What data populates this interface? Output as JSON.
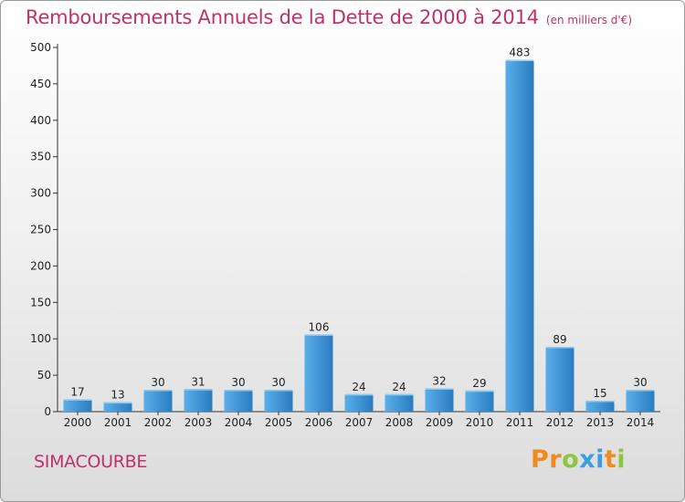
{
  "title": "Remboursements Annuels de la Dette de 2000 à 2014",
  "unit_note": "(en milliers d'€)",
  "commune": "SIMACOURBE",
  "logo": {
    "letters": [
      "P",
      "r",
      "o",
      "x",
      "i",
      "t",
      "i"
    ],
    "colors": [
      "#f08a1c",
      "#f08a1c",
      "#8cc63f",
      "#3a9ee0",
      "#3a9ee0",
      "#f08a1c",
      "#8cc63f"
    ]
  },
  "colors": {
    "title": "#c0306a",
    "bar_light": "#5aaeea",
    "bar_dark": "#2f7fbf",
    "axis": "#333333"
  },
  "chart_data": {
    "type": "bar",
    "title": "Remboursements Annuels de la Dette de 2000 à 2014",
    "categories": [
      "2000",
      "2001",
      "2002",
      "2003",
      "2004",
      "2005",
      "2006",
      "2007",
      "2008",
      "2009",
      "2010",
      "2011",
      "2012",
      "2013",
      "2014"
    ],
    "values": [
      17,
      13,
      30,
      31,
      30,
      30,
      106,
      24,
      24,
      32,
      29,
      483,
      89,
      15,
      30
    ],
    "ylim": [
      0,
      500
    ],
    "yticks": [
      0,
      50,
      100,
      150,
      200,
      250,
      300,
      350,
      400,
      450,
      500
    ],
    "grid": false,
    "xlabel": "",
    "ylabel": ""
  }
}
